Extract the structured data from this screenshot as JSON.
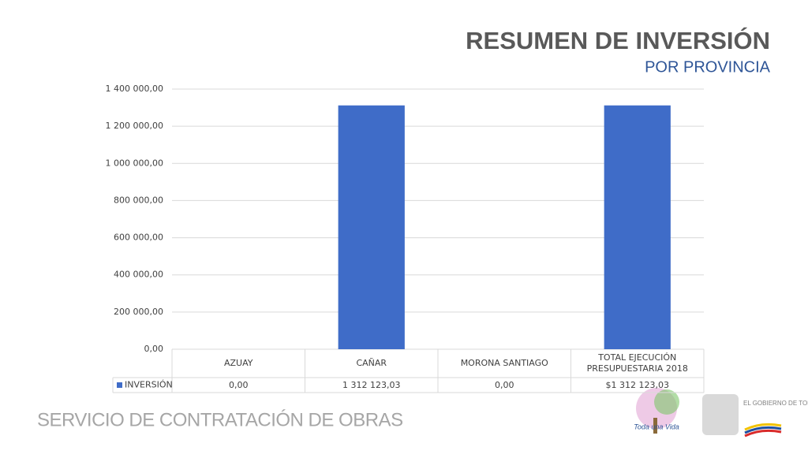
{
  "chart_data": {
    "type": "bar",
    "title": "RESUMEN DE INVERSIÓN",
    "subtitle": "POR PROVINCIA",
    "categories": [
      "AZUAY",
      "CAÑAR",
      "MORONA SANTIAGO",
      "TOTAL EJECUCIÓN PRESUPUESTARIA 2018"
    ],
    "series": [
      {
        "name": "INVERSIÓN",
        "color": "#3f6cc8",
        "values": [
          0,
          1312123.03,
          0,
          1312123.03
        ],
        "value_labels": [
          "0,00",
          "1 312 123,03",
          "0,00",
          "$1 312 123,03"
        ]
      }
    ],
    "ylim": [
      0,
      1400000
    ],
    "yticks": [
      {
        "value": 0,
        "label": "0,00"
      },
      {
        "value": 200000,
        "label": "200 000,00"
      },
      {
        "value": 400000,
        "label": "400 000,00"
      },
      {
        "value": 600000,
        "label": "600 000,00"
      },
      {
        "value": 800000,
        "label": "800 000,00"
      },
      {
        "value": 1000000,
        "label": "1 000 000,00"
      },
      {
        "value": 1200000,
        "label": "1 200 000,00"
      },
      {
        "value": 1400000,
        "label": "1 400 000,00"
      }
    ],
    "grid": true
  },
  "footer": "SERVICIO DE CONTRATACIÓN DE OBRAS",
  "logos": [
    "Toda una Vida",
    "EL GOBIERNO DE TODOS"
  ]
}
